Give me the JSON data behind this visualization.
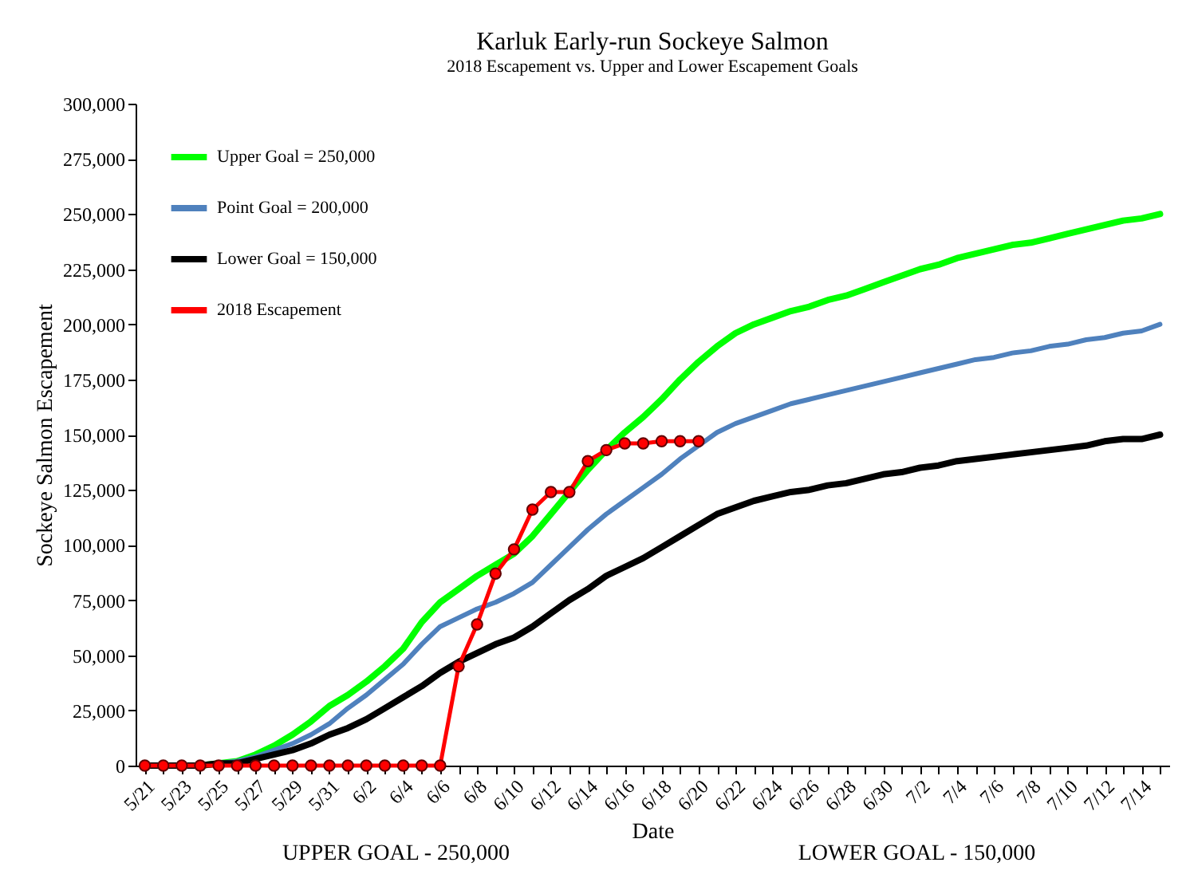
{
  "chart_data": {
    "type": "line",
    "title": "Karluk Early-run Sockeye Salmon",
    "subtitle": "2018 Escapement vs. Upper and Lower Escapement Goals",
    "xlabel": "Date",
    "ylabel": "Sockeye Salmon Escapement",
    "categories": [
      "5/21",
      null,
      "5/23",
      null,
      "5/25",
      null,
      "5/27",
      null,
      "5/29",
      null,
      "5/31",
      null,
      "6/2",
      null,
      "6/4",
      null,
      "6/6",
      null,
      "6/8",
      null,
      "6/10",
      null,
      "6/12",
      null,
      "6/14",
      null,
      "6/16",
      null,
      "6/18",
      null,
      "6/20",
      null,
      "6/22",
      null,
      "6/24",
      null,
      "6/26",
      null,
      "6/28",
      null,
      "6/30",
      null,
      "7/2",
      null,
      "7/4",
      null,
      "7/6",
      null,
      "7/8",
      null,
      "7/10",
      null,
      "7/12",
      null,
      "7/14",
      null
    ],
    "series": [
      {
        "name": "Upper Goal = 250,000",
        "color": "#00ff00",
        "values": [
          null,
          null,
          null,
          0,
          1000,
          2000,
          5000,
          9000,
          14000,
          20000,
          27000,
          32000,
          38000,
          45000,
          53000,
          65000,
          74000,
          80000,
          86000,
          91000,
          96000,
          104000,
          114000,
          124000,
          134000,
          143000,
          151000,
          158000,
          166000,
          175000,
          183000,
          190000,
          196000,
          200000,
          203000,
          206000,
          208000,
          211000,
          213000,
          216000,
          219000,
          222000,
          225000,
          227000,
          230000,
          232000,
          234000,
          236000,
          237000,
          239000,
          241000,
          243000,
          245000,
          247000,
          248000,
          250000
        ]
      },
      {
        "name": "Point Goal = 200,000",
        "color": "#4f81bd",
        "values": [
          null,
          null,
          null,
          0,
          1000,
          2000,
          4000,
          7000,
          10000,
          14000,
          19000,
          26000,
          32000,
          39000,
          46000,
          55000,
          63000,
          67000,
          71000,
          74000,
          78000,
          83000,
          91000,
          99000,
          107000,
          114000,
          120000,
          126000,
          132000,
          139000,
          145000,
          151000,
          155000,
          158000,
          161000,
          164000,
          166000,
          168000,
          170000,
          172000,
          174000,
          176000,
          178000,
          180000,
          182000,
          184000,
          185000,
          187000,
          188000,
          190000,
          191000,
          193000,
          194000,
          196000,
          197000,
          200000
        ]
      },
      {
        "name": "Lower Goal = 150,000",
        "color": "#000000",
        "values": [
          0,
          0,
          0,
          0,
          1000,
          1000,
          3000,
          5000,
          7000,
          10000,
          14000,
          17000,
          21000,
          26000,
          31000,
          36000,
          42000,
          47000,
          51000,
          55000,
          58000,
          63000,
          69000,
          75000,
          80000,
          86000,
          90000,
          94000,
          99000,
          104000,
          109000,
          114000,
          117000,
          120000,
          122000,
          124000,
          125000,
          127000,
          128000,
          130000,
          132000,
          133000,
          135000,
          136000,
          138000,
          139000,
          140000,
          141000,
          142000,
          143000,
          144000,
          145000,
          147000,
          148000,
          148000,
          150000
        ]
      },
      {
        "name": "2018 Escapement",
        "color": "#ff0000",
        "marker": "circle",
        "values": [
          0,
          0,
          0,
          0,
          0,
          0,
          0,
          0,
          0,
          0,
          0,
          0,
          0,
          0,
          0,
          0,
          0,
          45000,
          64000,
          87000,
          98000,
          116000,
          124000,
          124000,
          138000,
          143000,
          146000,
          146000,
          147000,
          147000,
          147000,
          null,
          null,
          null,
          null,
          null,
          null,
          null,
          null,
          null,
          null,
          null,
          null,
          null,
          null,
          null,
          null,
          null,
          null,
          null,
          null,
          null,
          null,
          null,
          null,
          null
        ]
      }
    ],
    "ylim": [
      0,
      300000
    ],
    "yticks": [
      0,
      {
        "value": 25000,
        "label": "25,000"
      },
      {
        "value": 50000,
        "label": "50,000"
      },
      {
        "value": 75000,
        "label": "75,000"
      },
      {
        "value": 100000,
        "label": "100,000"
      },
      {
        "value": 125000,
        "label": "125,000"
      },
      {
        "value": 150000,
        "label": "150,000"
      },
      {
        "value": 175000,
        "label": "175,000"
      },
      {
        "value": 200000,
        "label": "200,000"
      },
      {
        "value": 225000,
        "label": "225,000"
      },
      {
        "value": 250000,
        "label": "250,000"
      },
      {
        "value": 275000,
        "label": "275,000"
      },
      {
        "value": 300000,
        "label": "300,000"
      }
    ],
    "legend": "top left",
    "grid": false,
    "annotations": [
      "UPPER GOAL - 250,000",
      "LOWER GOAL - 150,000"
    ]
  }
}
